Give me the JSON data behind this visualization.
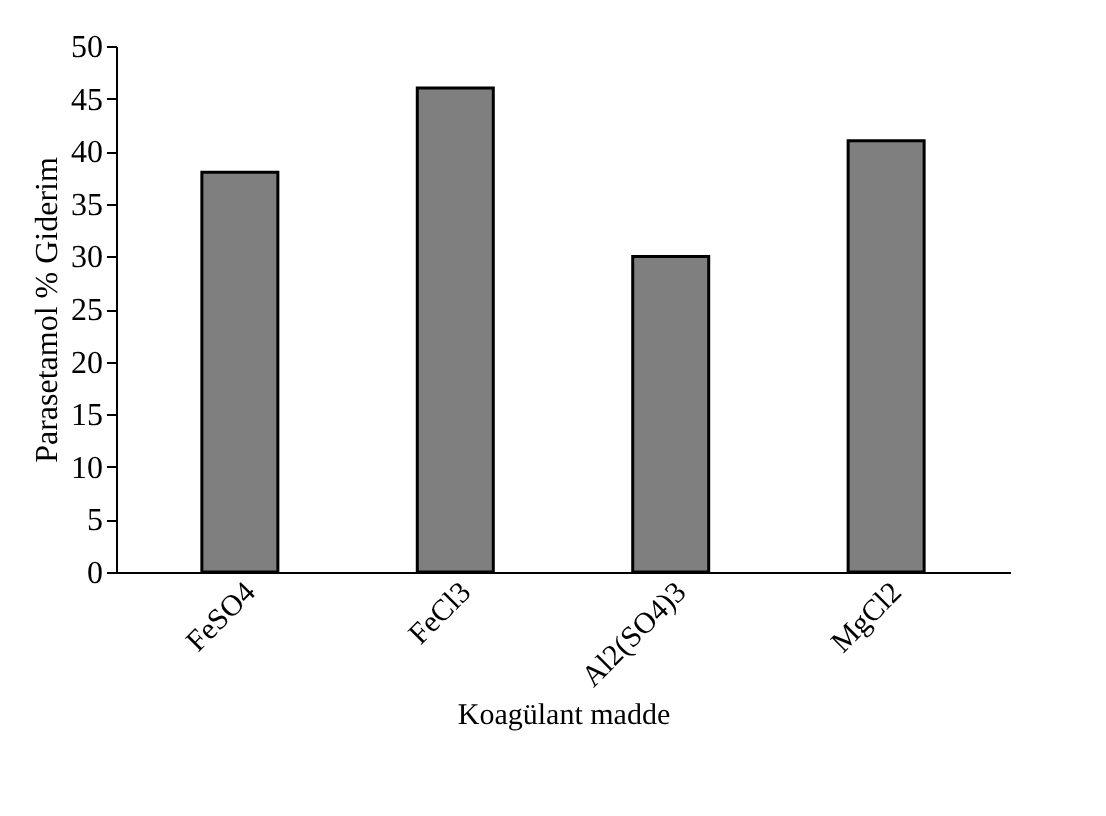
{
  "chart_data": {
    "type": "bar",
    "xlabel": "Koagülant madde",
    "ylabel": "Parasetamol % Giderim",
    "categories": [
      "FeSO4",
      "FeCl3",
      "Al2(SO4)3",
      "MgCl2"
    ],
    "values": [
      38,
      46,
      30,
      41
    ],
    "color": "#7f7f7f",
    "ylim": [
      0,
      50
    ],
    "yticks": [
      0,
      5,
      10,
      15,
      20,
      25,
      30,
      35,
      40,
      45,
      50
    ],
    "grid": false
  }
}
